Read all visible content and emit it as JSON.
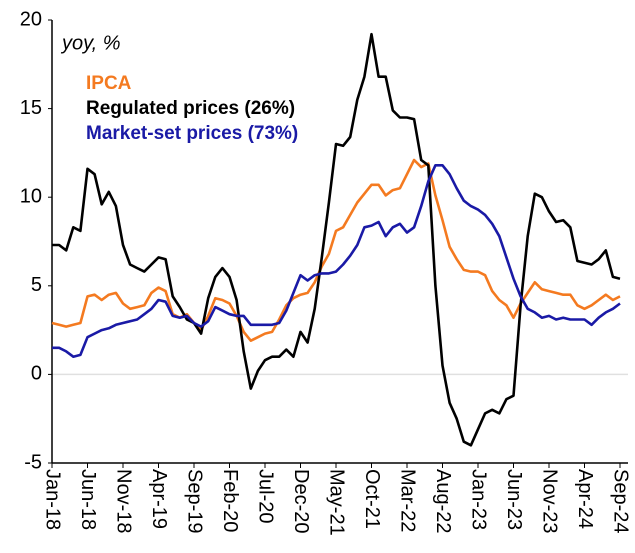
{
  "chart_data": {
    "type": "line",
    "annotation": "yoy, %",
    "categories": [
      "Jan-18",
      null,
      null,
      null,
      null,
      "Jun-18",
      null,
      null,
      null,
      null,
      "Nov-18",
      null,
      null,
      null,
      null,
      "Apr-19",
      null,
      null,
      null,
      null,
      "Sep-19",
      null,
      null,
      null,
      null,
      "Feb-20",
      null,
      null,
      null,
      null,
      "Jul-20",
      null,
      null,
      null,
      null,
      "Dec-20",
      null,
      null,
      null,
      null,
      "May-21",
      null,
      null,
      null,
      null,
      "Oct-21",
      null,
      null,
      null,
      null,
      "Mar-22",
      null,
      null,
      null,
      null,
      "Aug-22",
      null,
      null,
      null,
      null,
      "Jan-23",
      null,
      null,
      null,
      null,
      "Jun-23",
      null,
      null,
      null,
      null,
      "Nov-23",
      null,
      null,
      null,
      null,
      "Apr-24",
      null,
      null,
      null,
      null,
      "Sep-24"
    ],
    "series": [
      {
        "name": "IPCA",
        "color": "#f47a20",
        "values": [
          2.9,
          2.8,
          2.7,
          2.8,
          2.9,
          4.4,
          4.5,
          4.2,
          4.5,
          4.6,
          4.0,
          3.7,
          3.8,
          3.9,
          4.6,
          4.9,
          4.7,
          3.4,
          3.2,
          3.4,
          2.9,
          2.5,
          3.3,
          4.3,
          4.2,
          4.0,
          3.3,
          2.4,
          1.9,
          2.1,
          2.3,
          2.4,
          3.1,
          3.9,
          4.3,
          4.5,
          4.6,
          5.2,
          6.1,
          6.8,
          8.1,
          8.3,
          9.0,
          9.7,
          10.2,
          10.7,
          10.7,
          10.1,
          10.4,
          10.5,
          11.3,
          12.1,
          11.7,
          11.9,
          10.1,
          8.7,
          7.2,
          6.5,
          5.9,
          5.8,
          5.8,
          5.6,
          4.7,
          4.2,
          3.9,
          3.2,
          4.0,
          4.6,
          5.2,
          4.8,
          4.7,
          4.6,
          4.5,
          4.5,
          3.9,
          3.7,
          3.9,
          4.2,
          4.5,
          4.2,
          4.4
        ]
      },
      {
        "name": "Regulated prices (26%)",
        "color": "#000000",
        "values": [
          7.3,
          7.3,
          7.0,
          8.3,
          8.1,
          11.6,
          11.3,
          9.6,
          10.3,
          9.5,
          7.3,
          6.2,
          6.0,
          5.8,
          6.2,
          6.6,
          6.5,
          4.4,
          3.8,
          3.1,
          2.9,
          2.3,
          4.3,
          5.5,
          6.0,
          5.5,
          4.2,
          1.3,
          -0.8,
          0.2,
          0.8,
          1.0,
          1.0,
          1.4,
          1.0,
          2.4,
          1.8,
          3.7,
          6.6,
          9.7,
          13.0,
          12.9,
          13.4,
          15.5,
          16.8,
          19.2,
          16.8,
          16.8,
          14.9,
          14.5,
          14.5,
          14.4,
          12.1,
          11.8,
          5.0,
          0.5,
          -1.6,
          -2.5,
          -3.8,
          -4.0,
          -3.1,
          -2.2,
          -2.0,
          -2.2,
          -1.4,
          -1.2,
          3.9,
          7.8,
          10.2,
          10.0,
          9.2,
          8.6,
          8.7,
          8.3,
          6.4,
          6.3,
          6.2,
          6.5,
          7.0,
          5.5,
          5.4
        ]
      },
      {
        "name": "Market-set prices (73%)",
        "color": "#1a1aa6",
        "values": [
          1.5,
          1.5,
          1.3,
          1.0,
          1.1,
          2.1,
          2.3,
          2.5,
          2.6,
          2.8,
          2.9,
          3.0,
          3.1,
          3.4,
          3.7,
          4.2,
          4.1,
          3.3,
          3.2,
          3.3,
          2.9,
          2.7,
          3.0,
          3.8,
          3.6,
          3.4,
          3.3,
          3.3,
          2.8,
          2.8,
          2.8,
          2.8,
          2.9,
          3.6,
          4.6,
          5.6,
          5.3,
          5.6,
          5.7,
          5.7,
          5.8,
          6.2,
          6.7,
          7.3,
          8.3,
          8.4,
          8.6,
          7.8,
          8.3,
          8.5,
          8.0,
          8.3,
          9.5,
          10.9,
          11.8,
          11.8,
          11.3,
          10.5,
          9.8,
          9.5,
          9.3,
          9.0,
          8.5,
          7.8,
          6.6,
          5.4,
          4.4,
          3.7,
          3.5,
          3.2,
          3.3,
          3.1,
          3.2,
          3.1,
          3.1,
          3.1,
          2.8,
          3.2,
          3.5,
          3.7,
          4.0
        ]
      }
    ],
    "ylim": [
      -5,
      20
    ],
    "yticks": [
      -5,
      0,
      5,
      10,
      15,
      20
    ],
    "grid": false
  }
}
